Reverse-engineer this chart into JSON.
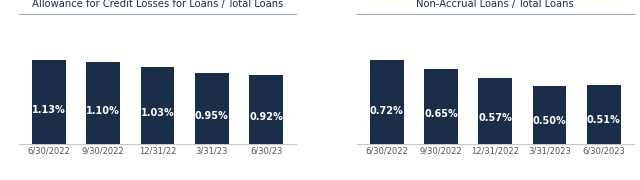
{
  "chart1": {
    "title": "Allowance for Credit Losses for Loans / Total Loans",
    "categories": [
      "6/30/2022",
      "9/30/2022",
      "12/31/22",
      "3/31/23",
      "6/30/23"
    ],
    "values": [
      1.13,
      1.1,
      1.03,
      0.95,
      0.92
    ],
    "labels": [
      "1.13%",
      "1.10%",
      "1.03%",
      "0.95%",
      "0.92%"
    ],
    "bar_color": "#1a2e4a",
    "ylim": [
      0,
      1.4
    ]
  },
  "chart2": {
    "title": "Non-Accrual Loans / Total Loans",
    "categories": [
      "6/30/2022",
      "9/30/2022",
      "12/31/2022",
      "3/31/2023",
      "6/30/2023"
    ],
    "values": [
      0.72,
      0.65,
      0.57,
      0.5,
      0.51
    ],
    "labels": [
      "0.72%",
      "0.65%",
      "0.57%",
      "0.50%",
      "0.51%"
    ],
    "bar_color": "#1a2e4a",
    "ylim": [
      0,
      0.9
    ]
  },
  "title_color": "#1a2e4a",
  "label_color": "#ffffff",
  "title_fontsize": 7.2,
  "label_fontsize": 7.0,
  "tick_fontsize": 6.0,
  "background_color": "#ffffff",
  "title_line_color": "#a0aabf"
}
